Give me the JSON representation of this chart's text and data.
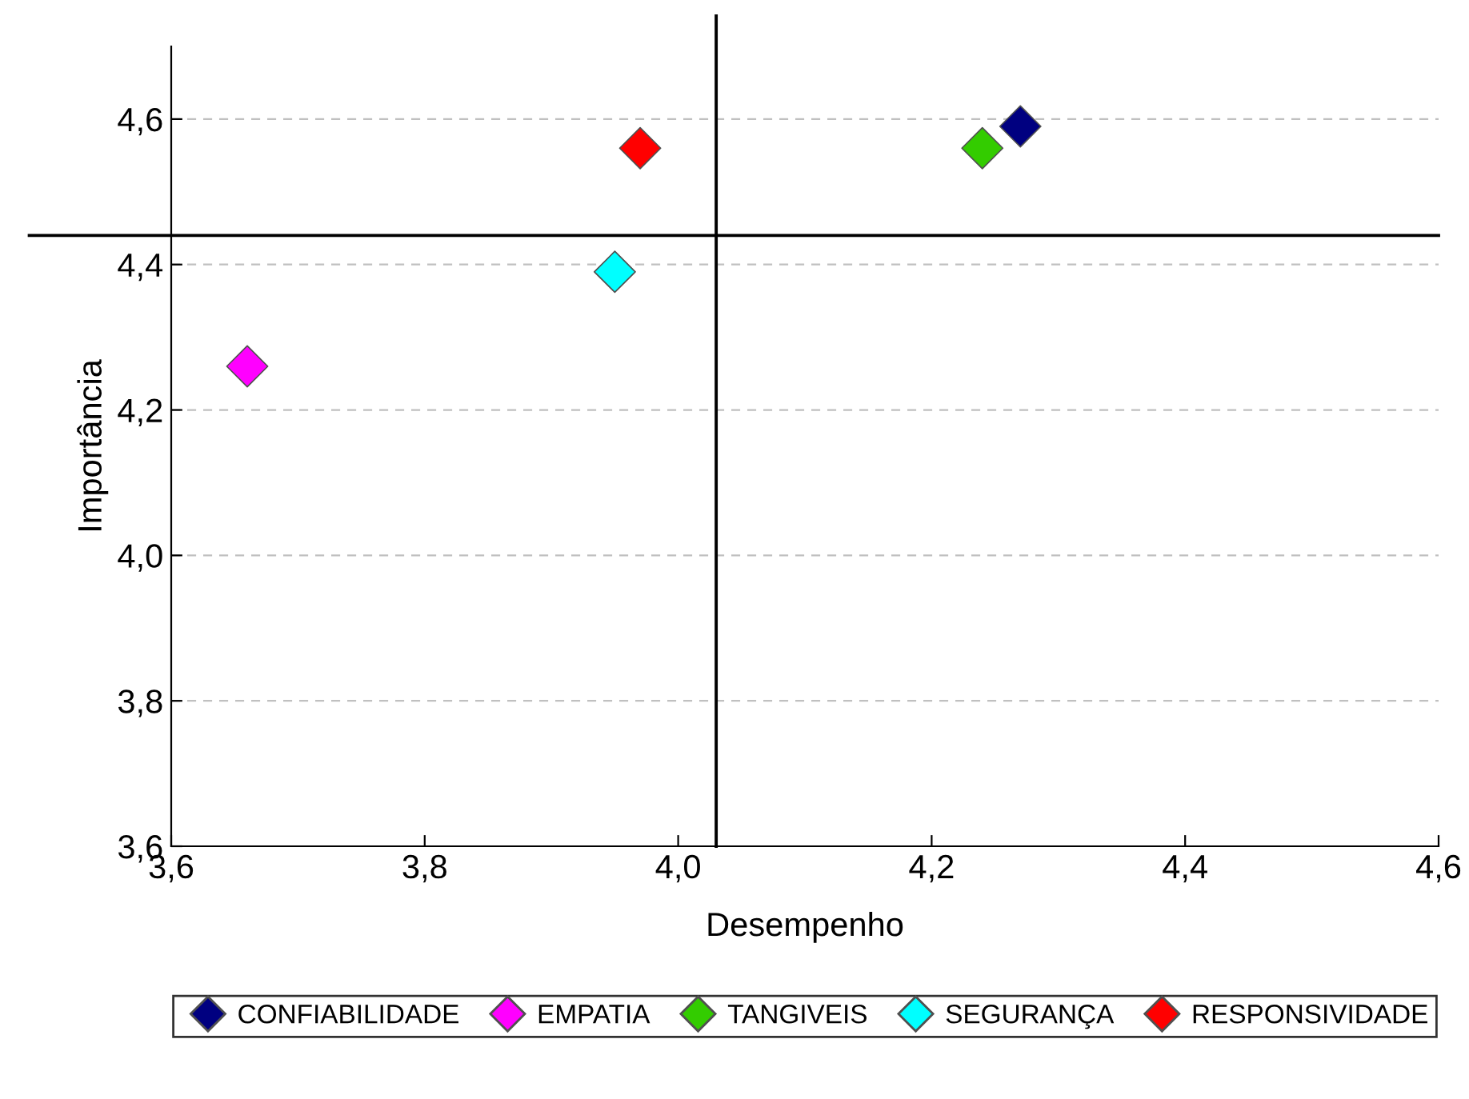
{
  "chart_data": {
    "type": "scatter",
    "xlabel": "Desempenho",
    "ylabel": "Importância",
    "marker": "diamond",
    "grid": "y",
    "legend": "bottom",
    "xlim": [
      3.6,
      4.6
    ],
    "ylim": [
      3.6,
      4.7
    ],
    "xticks": [
      {
        "value": 3.6,
        "label": "3,6"
      },
      {
        "value": 3.8,
        "label": "3,8"
      },
      {
        "value": 4.0,
        "label": "4,0"
      },
      {
        "value": 4.2,
        "label": "4,2"
      },
      {
        "value": 4.4,
        "label": "4,4"
      },
      {
        "value": 4.6,
        "label": "4,6"
      }
    ],
    "yticks": [
      {
        "value": 3.6,
        "label": "3,6"
      },
      {
        "value": 3.8,
        "label": "3,8"
      },
      {
        "value": 4.0,
        "label": "4,0"
      },
      {
        "value": 4.2,
        "label": "4,2"
      },
      {
        "value": 4.4,
        "label": "4,4"
      },
      {
        "value": 4.6,
        "label": "4,6"
      }
    ],
    "series": [
      {
        "name": "CONFIABILIDADE",
        "color": "#000080",
        "x": [
          4.27
        ],
        "values": [
          4.59
        ]
      },
      {
        "name": "EMPATIA",
        "color": "#ff00ff",
        "x": [
          3.66
        ],
        "values": [
          4.26
        ]
      },
      {
        "name": "TANGIVEIS",
        "color": "#33cc00",
        "x": [
          4.24
        ],
        "values": [
          4.56
        ]
      },
      {
        "name": "SEGURANÇA",
        "color": "#00ffff",
        "x": [
          3.95
        ],
        "values": [
          4.39
        ]
      },
      {
        "name": "RESPONSIVIDADE",
        "color": "#ff0000",
        "x": [
          3.97
        ],
        "values": [
          4.56
        ]
      }
    ],
    "ref_lines": [
      {
        "axis": "x",
        "value": 4.03,
        "color": "#000000"
      },
      {
        "axis": "y",
        "value": 4.44,
        "color": "#000000"
      }
    ]
  }
}
